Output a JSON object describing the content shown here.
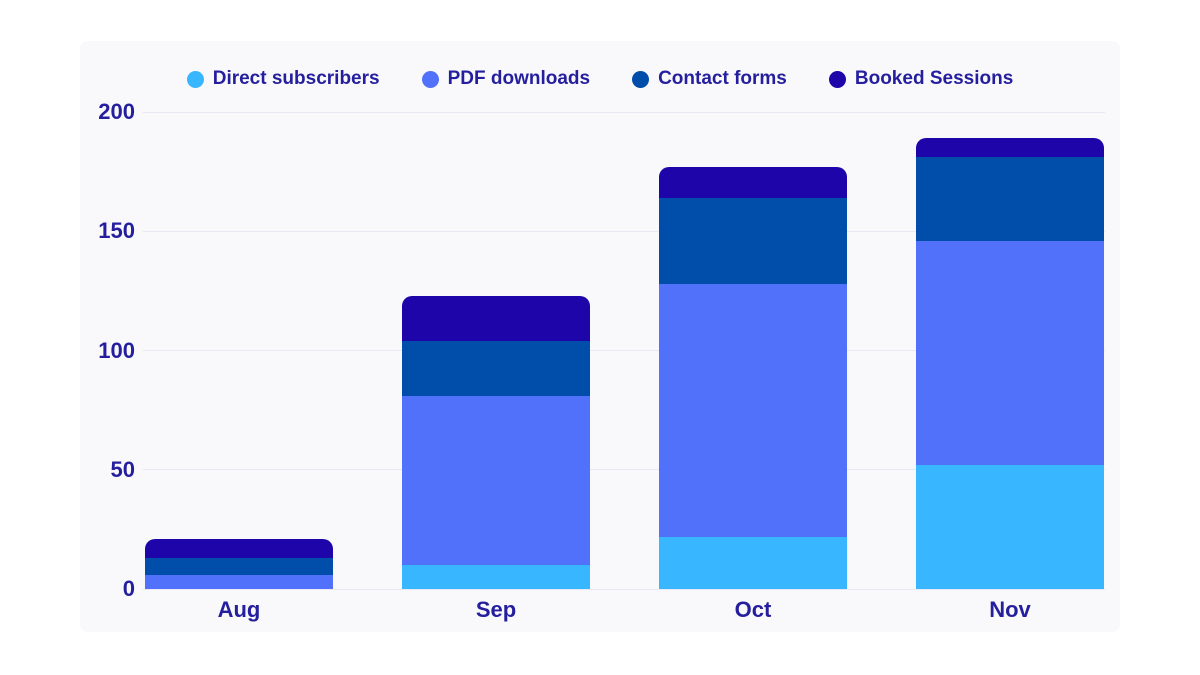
{
  "chart_data": {
    "type": "bar",
    "stacked": true,
    "title": "",
    "categories": [
      "Aug",
      "Sep",
      "Oct",
      "Nov"
    ],
    "series": [
      {
        "name": "Direct subscribers",
        "color": "#38B6FF",
        "values": [
          0,
          10,
          22,
          52
        ]
      },
      {
        "name": "PDF downloads",
        "color": "#5271FB",
        "values": [
          6,
          71,
          106,
          94
        ]
      },
      {
        "name": "Contact forms",
        "color": "#004DAA",
        "values": [
          7,
          23,
          36,
          35
        ]
      },
      {
        "name": "Booked Sessions",
        "color": "#1E05AA",
        "values": [
          8,
          19,
          13,
          8
        ]
      }
    ],
    "totals": [
      21,
      123,
      177,
      189
    ],
    "ylim": [
      0,
      200
    ],
    "yticks": [
      0,
      50,
      100,
      150,
      200
    ],
    "grid": true,
    "legend_position": "top",
    "xlabel": "",
    "ylabel": ""
  },
  "palette": {
    "label_text": "#251F9E",
    "grid_line": "#E9E9F3",
    "card_bg": "#F9F9FB",
    "page_bg": "#FFFFFF"
  }
}
